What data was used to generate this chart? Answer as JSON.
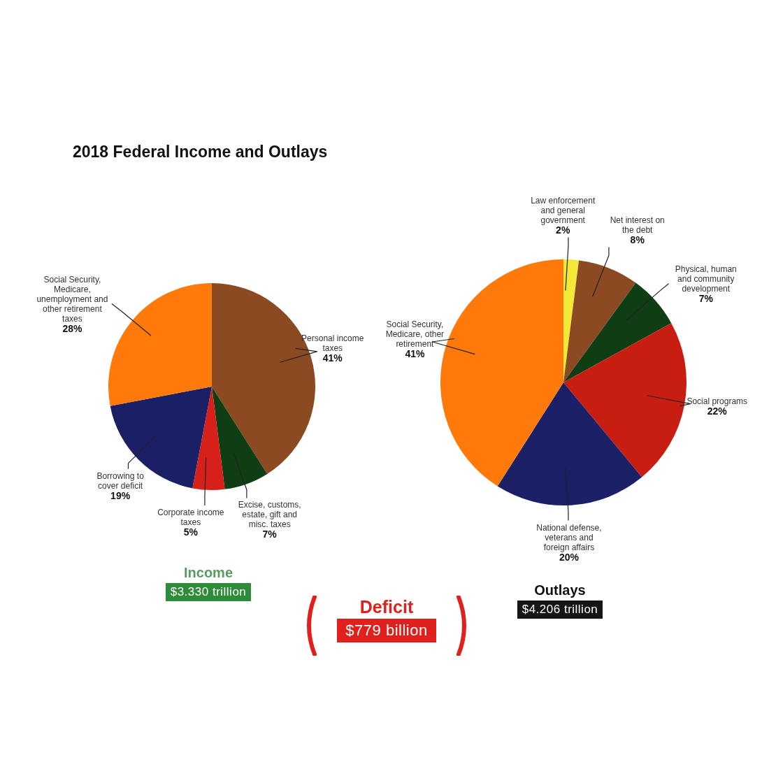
{
  "chart_data": [
    {
      "type": "other",
      "title": "2018 Federal Income and Outlays"
    },
    {
      "type": "pie",
      "title": "Income",
      "subtitle": "$3.330 trillion",
      "categories": [
        "Personal income taxes",
        "Excise, customs, estate, gift and misc. taxes",
        "Corporate income taxes",
        "Borrowing to cover deficit",
        "Social Security, Medicare, unemployment and other retirement taxes"
      ],
      "values": [
        41,
        7,
        5,
        19,
        28
      ],
      "colors": [
        "#8b4a22",
        "#0f3d14",
        "#d8201a",
        "#1b1f66",
        "#ff7a0a"
      ],
      "value_labels": [
        "41%",
        "7%",
        "5%",
        "19%",
        "28%"
      ]
    },
    {
      "type": "pie",
      "title": "Outlays",
      "subtitle": "$4.206 trillion",
      "categories": [
        "Law enforcement and general government",
        "Net interest on the debt",
        "Physical, human and community development",
        "Social programs",
        "National defense, veterans and foreign affairs",
        "Social Security, Medicare, other retirement"
      ],
      "values": [
        2,
        8,
        7,
        22,
        20,
        41
      ],
      "colors": [
        "#f2e838",
        "#8b4a22",
        "#0f3d14",
        "#c81e12",
        "#1b1f66",
        "#ff7a0a"
      ],
      "value_labels": [
        "2%",
        "8%",
        "7%",
        "22%",
        "20%",
        "41%"
      ]
    },
    {
      "type": "other",
      "title": "Deficit",
      "subtitle": "$779 billion"
    }
  ]
}
